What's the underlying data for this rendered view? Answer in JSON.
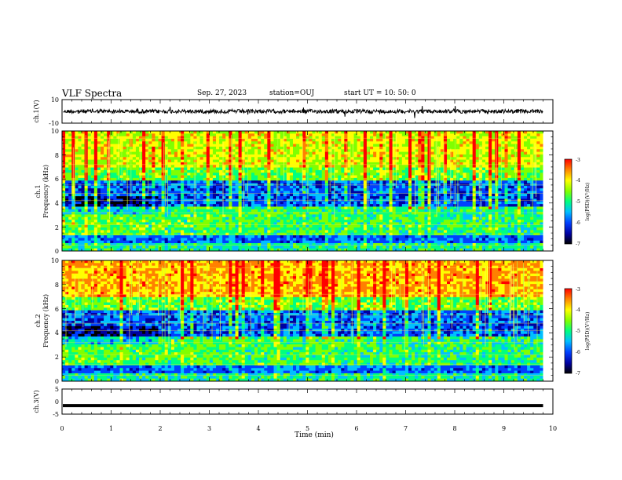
{
  "header": {
    "title": "VLF Spectra",
    "date": "Sep. 27, 2023",
    "station": "station=OUJ",
    "start_ut": "start UT = 10: 50: 0"
  },
  "chart_data": [
    {
      "type": "line",
      "name": "ch1-waveform",
      "ylabel": "ch.1(V)",
      "ylim": [
        -10,
        10
      ],
      "yticks": [
        "10",
        "-10"
      ],
      "xlim": [
        0,
        10
      ],
      "description_level": 0
    },
    {
      "type": "heatmap",
      "name": "ch1-spectrogram",
      "ylabel": "ch.1 Frequency (kHz)",
      "ylabel_line1": "ch.1",
      "ylabel_line2": "Frequency (kHz)",
      "ylim": [
        0,
        10
      ],
      "yticks": [
        "0",
        "2",
        "4",
        "6",
        "8",
        "10"
      ],
      "xlim": [
        0,
        10
      ],
      "colorbar": {
        "label": "log(PSD)(V²/Hz)",
        "range": [
          -7,
          -3
        ],
        "ticks": [
          "-3",
          "-4",
          "-5",
          "-6",
          "-7"
        ]
      }
    },
    {
      "type": "heatmap",
      "name": "ch2-spectrogram",
      "ylabel": "ch.2 Frequency (kHz)",
      "ylabel_line1": "ch.2",
      "ylabel_line2": "Frequency (kHz)",
      "ylim": [
        0,
        10
      ],
      "yticks": [
        "0",
        "2",
        "4",
        "6",
        "8",
        "10"
      ],
      "xlim": [
        0,
        10
      ],
      "colorbar": {
        "label": "log(PSD)(V²/Hz)",
        "range": [
          -7,
          -3
        ],
        "ticks": [
          "-3",
          "-4",
          "-5",
          "-6",
          "-7"
        ]
      }
    },
    {
      "type": "line",
      "name": "ch3-waveform",
      "ylabel": "ch.3(V)",
      "ylim": [
        -5,
        5
      ],
      "yticks": [
        "5",
        "0",
        "-5"
      ],
      "xlim": [
        0,
        10
      ],
      "description_level": -1.6,
      "xlabel": "Time (min)",
      "xticks": [
        "0",
        "1",
        "2",
        "3",
        "4",
        "5",
        "6",
        "7",
        "8",
        "9",
        "10"
      ],
      "data_end_x": 9.8
    }
  ],
  "colors": {
    "colormap": [
      "#000000",
      "#0000a0",
      "#0040ff",
      "#00c0ff",
      "#00ff80",
      "#80ff00",
      "#ffff00",
      "#ff8000",
      "#ff0000"
    ]
  }
}
